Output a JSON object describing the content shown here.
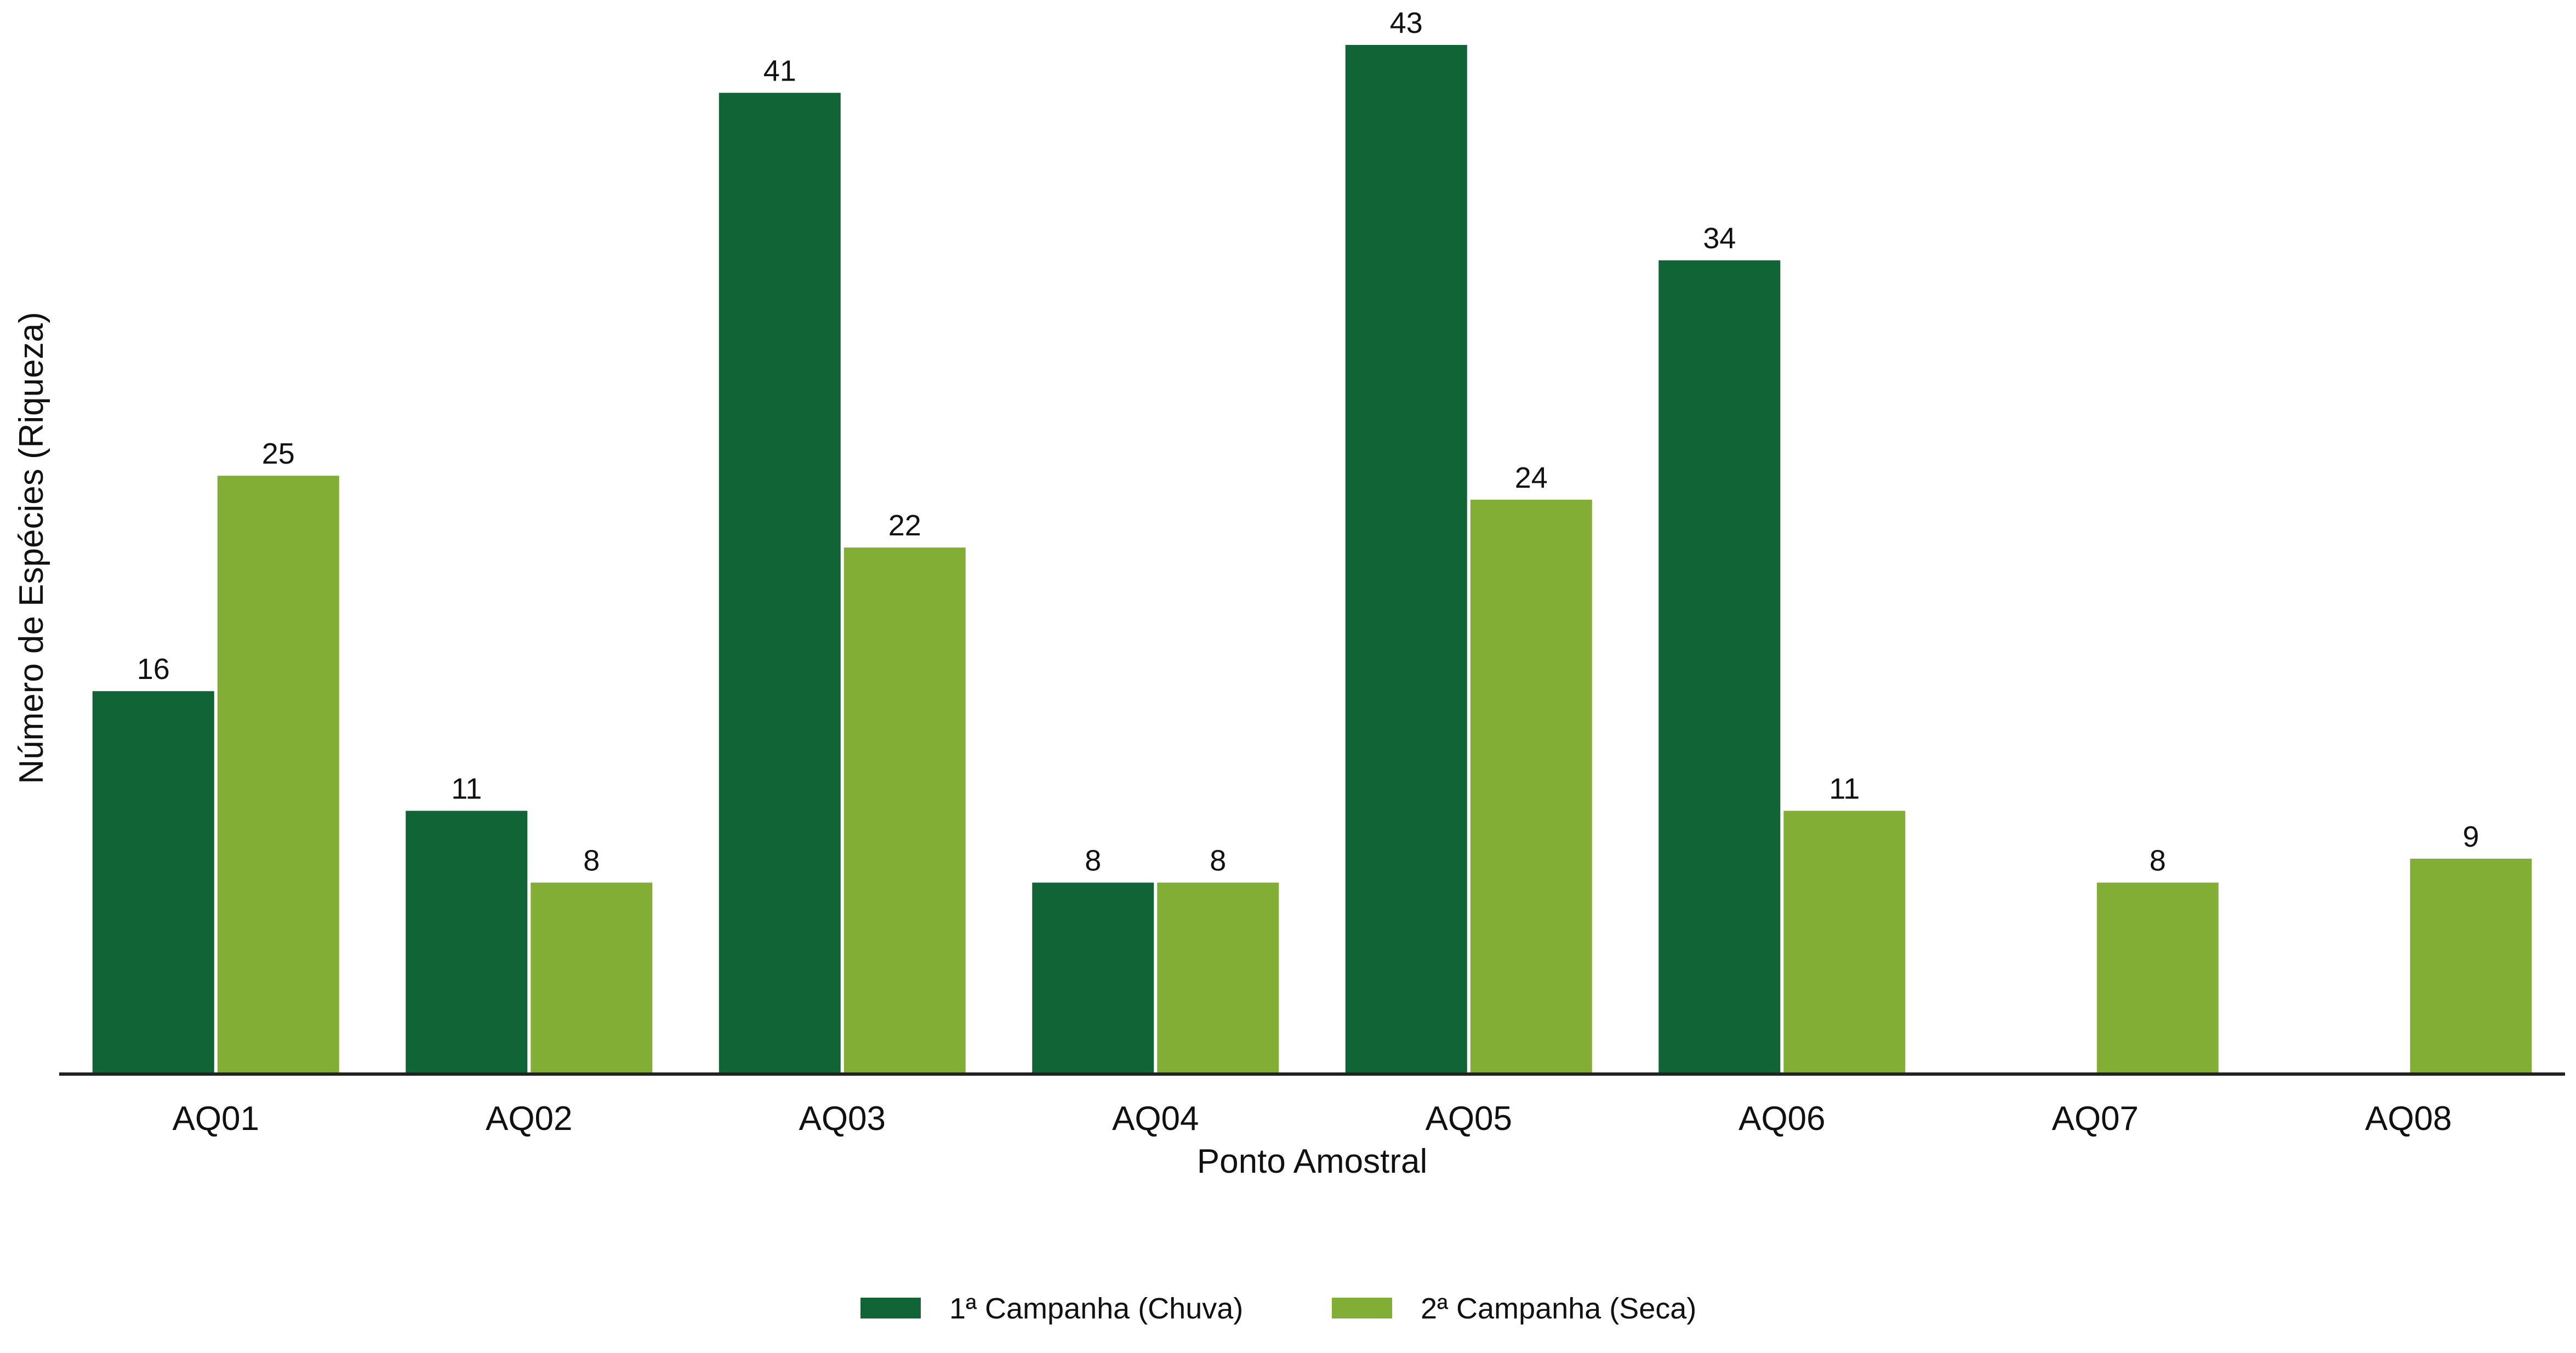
{
  "chart_data": {
    "type": "bar",
    "title": "",
    "xlabel": "Ponto Amostral",
    "ylabel": "Número de Espécies (Riqueza)",
    "categories": [
      "AQ01",
      "AQ02",
      "AQ03",
      "AQ04",
      "AQ05",
      "AQ06",
      "AQ07",
      "AQ08"
    ],
    "series": [
      {
        "name": "1ª Campanha (Chuva)",
        "color": "#106435",
        "values": [
          16,
          11,
          41,
          8,
          43,
          34,
          null,
          null
        ]
      },
      {
        "name": "2ª Campanha (Seca)",
        "color": "#82AE36",
        "values": [
          25,
          8,
          22,
          8,
          24,
          11,
          8,
          9
        ]
      }
    ],
    "ylim": [
      0,
      45
    ],
    "grid": false,
    "y_ticks_shown": false,
    "legend_position": "bottom-center"
  }
}
